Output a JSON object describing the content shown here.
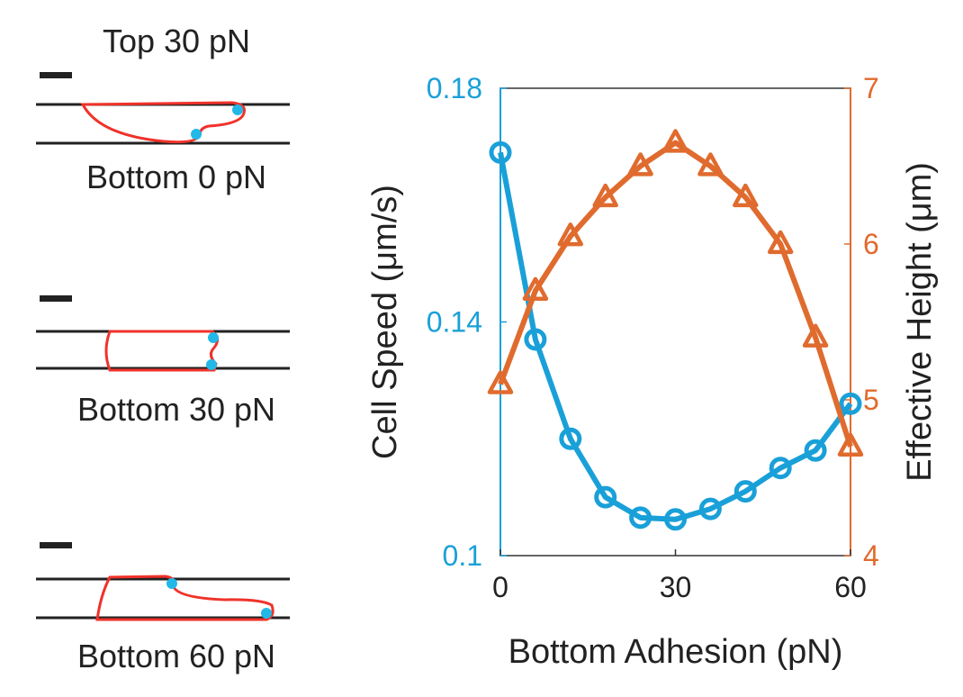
{
  "panels": {
    "top_label": "Top 30 pN",
    "bottom_labels": [
      "Bottom 0 pN",
      "Bottom 30 pN",
      "Bottom 60 pN"
    ]
  },
  "colors": {
    "speed": "#1aa0d8",
    "height": "#e06b2e",
    "cell_outline": "#f0322a",
    "marker_dot": "#22b8e8",
    "wall": "#222222",
    "text": "#222222"
  },
  "chart_data": {
    "type": "line",
    "title": "",
    "xlabel": "Bottom Adhesion (pN)",
    "xlim": [
      0,
      60
    ],
    "xticks": [
      "0",
      "30",
      "60"
    ],
    "x": [
      0,
      6,
      12,
      18,
      24,
      30,
      36,
      42,
      48,
      54,
      60
    ],
    "left_axis": {
      "label": "Cell Speed (μm/s)",
      "ylim": [
        0.1,
        0.18
      ],
      "ticks": [
        "0.1",
        "0.14",
        "0.18"
      ]
    },
    "right_axis": {
      "label": "Effective Height (μm)",
      "ylim": [
        4,
        7
      ],
      "ticks": [
        "4",
        "5",
        "6",
        "7"
      ]
    },
    "grid": false,
    "series": [
      {
        "axis": "left",
        "marker": "circle",
        "color": "#1aa0d8",
        "values": [
          0.169,
          0.137,
          0.12,
          0.11,
          0.1065,
          0.1062,
          0.108,
          0.111,
          0.115,
          0.118,
          0.126
        ]
      },
      {
        "axis": "right",
        "marker": "triangle",
        "color": "#e06b2e",
        "values": [
          5.1,
          5.7,
          6.05,
          6.3,
          6.5,
          6.65,
          6.5,
          6.3,
          6.0,
          5.4,
          4.7
        ]
      }
    ]
  }
}
